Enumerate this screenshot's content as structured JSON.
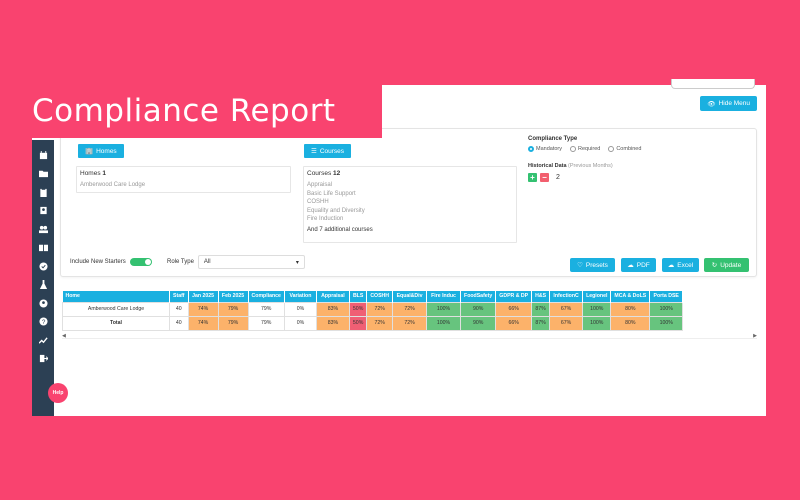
{
  "title": "Compliance Report",
  "hide_menu": "Hide Menu",
  "help": "Help",
  "homes_btn": "Homes",
  "courses_btn": "Courses",
  "homes_box": {
    "label": "Homes",
    "count": "1",
    "items": [
      "Amberwood Care Lodge"
    ]
  },
  "courses_box": {
    "label": "Courses",
    "count": "12",
    "items": [
      "Appraisal",
      "Basic Life Support",
      "COSHH",
      "Equality and Diversity",
      "Fire Induction"
    ],
    "more": "And 7 additional courses"
  },
  "compliance_type": {
    "label": "Compliance Type",
    "options": [
      "Mandatory",
      "Required",
      "Combined"
    ],
    "selected": "Mandatory"
  },
  "historical": {
    "label": "Historical Data",
    "sub": "(Previous Months)",
    "value": "2"
  },
  "include_new_starters": "Include New Starters",
  "role_type": {
    "label": "Role Type",
    "value": "All"
  },
  "actions": {
    "presets": "Presets",
    "pdf": "PDF",
    "excel": "Excel",
    "update": "Update"
  },
  "table": {
    "headers": [
      "Home",
      "Staff",
      "Jan 2025",
      "Feb 2025",
      "Compliance",
      "Variation",
      "Appraisal",
      "BLS",
      "COSHH",
      "Equal&Div",
      "Fire Induc",
      "FoodSafety",
      "GDPR & DP",
      "H&S",
      "InfectionC",
      "Legionel",
      "MCA & DoLS",
      "Porta DSE"
    ],
    "rows": [
      {
        "cells": [
          "Amberwood Care Lodge",
          "40",
          "74%",
          "79%",
          "79%",
          "0%",
          "83%",
          "50%",
          "72%",
          "72%",
          "100%",
          "90%",
          "66%",
          "87%",
          "67%",
          "100%",
          "80%",
          "100%"
        ]
      },
      {
        "cells": [
          "Total",
          "40",
          "74%",
          "79%",
          "79%",
          "0%",
          "83%",
          "50%",
          "72%",
          "72%",
          "100%",
          "90%",
          "66%",
          "87%",
          "67%",
          "100%",
          "80%",
          "100%"
        ]
      }
    ],
    "colors": [
      "white",
      "white",
      "orange",
      "orange",
      "white",
      "white",
      "orange",
      "red",
      "orange",
      "orange",
      "green",
      "green",
      "orange",
      "green",
      "orange",
      "green",
      "orange",
      "green"
    ]
  }
}
